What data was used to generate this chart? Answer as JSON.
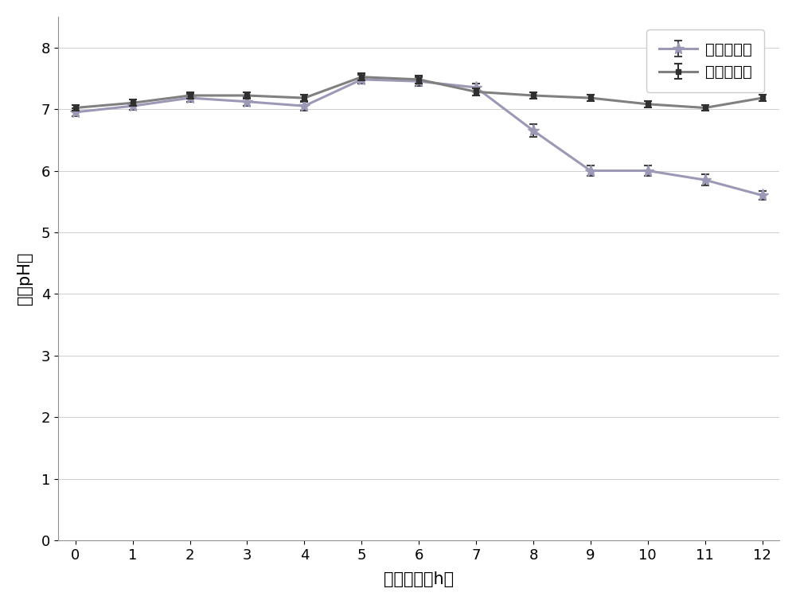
{
  "x": [
    0,
    1,
    2,
    3,
    4,
    5,
    6,
    7,
    8,
    9,
    10,
    11,
    12
  ],
  "series1_y": [
    6.95,
    7.05,
    7.18,
    7.12,
    7.05,
    7.48,
    7.45,
    7.35,
    6.65,
    6.0,
    6.0,
    5.85,
    5.6
  ],
  "series1_err": [
    0.06,
    0.06,
    0.06,
    0.07,
    0.07,
    0.07,
    0.07,
    0.07,
    0.1,
    0.09,
    0.09,
    0.09,
    0.07
  ],
  "series2_y": [
    7.02,
    7.1,
    7.22,
    7.22,
    7.18,
    7.52,
    7.48,
    7.28,
    7.22,
    7.18,
    7.08,
    7.02,
    7.18
  ],
  "series2_err": [
    0.05,
    0.05,
    0.05,
    0.05,
    0.05,
    0.06,
    0.06,
    0.06,
    0.05,
    0.05,
    0.05,
    0.05,
    0.05
  ],
  "series1_label": "原有培养基",
  "series2_label": "改良培养基",
  "series1_color": "#9b99b5",
  "series2_color": "#808080",
  "xlabel": "培养时间（h）",
  "ylabel": "菌液pH値",
  "ylim": [
    0,
    8.5
  ],
  "yticks": [
    0,
    1,
    2,
    3,
    4,
    5,
    6,
    7,
    8
  ],
  "xlim": [
    -0.3,
    12.3
  ],
  "xticks": [
    0,
    1,
    2,
    3,
    4,
    5,
    6,
    7,
    8,
    9,
    10,
    11,
    12
  ],
  "background_color": "#ffffff",
  "fontsize_label": 15,
  "fontsize_tick": 13,
  "fontsize_legend": 14
}
